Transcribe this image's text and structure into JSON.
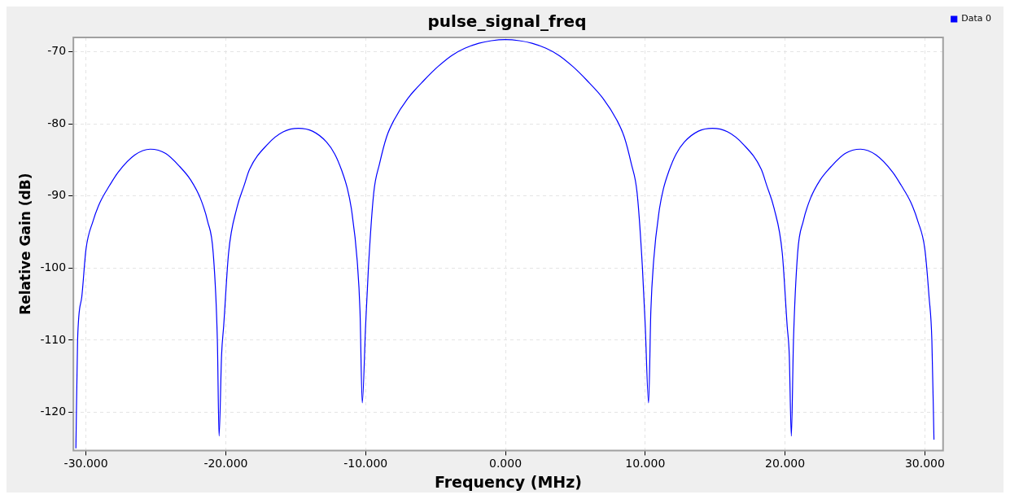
{
  "chart_data": {
    "type": "line",
    "title": "pulse_signal_freq",
    "xlabel": "Frequency (MHz)",
    "ylabel": "Relative Gain (dB)",
    "x": [
      -30.72,
      -30.6,
      -30.3,
      -30.0,
      -29.5,
      -29.0,
      -28.3,
      -27.7,
      -26.5,
      -25.4,
      -24.3,
      -23.3,
      -22.5,
      -21.8,
      -21.3,
      -20.9,
      -20.6,
      -20.48,
      -20.3,
      -20.15,
      -19.8,
      -19.2,
      -18.7,
      -18.3,
      -17.0,
      -15.9,
      -14.8,
      -13.8,
      -12.8,
      -12.2,
      -11.7,
      -11.3,
      -11.0,
      -10.6,
      -10.4,
      -10.24,
      -10.0,
      -9.8,
      -9.42,
      -9.0,
      -8.5,
      -7.95,
      -7.0,
      -5.8,
      -4.8,
      -3.84,
      -2.9,
      -1.9,
      -1.0,
      0,
      1.0,
      1.9,
      2.9,
      3.84,
      4.8,
      5.8,
      7.0,
      7.95,
      8.5,
      9.0,
      9.42,
      9.8,
      10.0,
      10.24,
      10.4,
      10.6,
      11.0,
      11.3,
      11.7,
      12.2,
      12.8,
      13.8,
      14.8,
      15.9,
      17.0,
      18.3,
      18.7,
      19.2,
      19.8,
      20.15,
      20.3,
      20.45,
      20.6,
      20.9,
      21.3,
      21.8,
      22.5,
      23.3,
      24.3,
      25.4,
      26.5,
      27.7,
      28.3,
      29.0,
      29.5,
      30.0,
      30.3,
      30.5,
      30.65
    ],
    "series": [
      {
        "name": "Data 0",
        "color": "#0000ff",
        "values": [
          -125,
          -110,
          -104,
          -97.4,
          -93.5,
          -90.9,
          -88.5,
          -86.7,
          -84.3,
          -83.5,
          -84.1,
          -85.9,
          -87.8,
          -90.4,
          -93.5,
          -97.9,
          -110.2,
          -123.3,
          -112,
          -108,
          -97.9,
          -91.6,
          -88.6,
          -86.3,
          -82.8,
          -81.1,
          -80.6,
          -81.0,
          -82.5,
          -84.2,
          -86.5,
          -89,
          -92,
          -99,
          -106,
          -118.7,
          -108,
          -100,
          -89.6,
          -85.5,
          -81.8,
          -79.4,
          -76.5,
          -73.9,
          -72.0,
          -70.5,
          -69.5,
          -68.8,
          -68.45,
          -68.3,
          -68.45,
          -68.8,
          -69.5,
          -70.5,
          -72.0,
          -73.9,
          -76.5,
          -79.4,
          -81.8,
          -85.5,
          -89.6,
          -100,
          -108,
          -118.7,
          -106,
          -99,
          -92,
          -89,
          -86.5,
          -84.2,
          -82.5,
          -81.0,
          -80.6,
          -81.1,
          -82.8,
          -86.3,
          -88.6,
          -91.6,
          -97.9,
          -108,
          -112,
          -123.3,
          -110.2,
          -97.9,
          -93.5,
          -90.4,
          -87.8,
          -85.9,
          -84.1,
          -83.5,
          -84.3,
          -86.7,
          -88.5,
          -90.9,
          -93.5,
          -97.4,
          -104,
          -110,
          -123.8
        ]
      }
    ],
    "xlim": [
      -30.9,
      31.3
    ],
    "ylim": [
      -125.3,
      -68
    ],
    "xticks": [
      {
        "value": -30,
        "label": "-30.000"
      },
      {
        "value": -20,
        "label": "-20.000"
      },
      {
        "value": -10,
        "label": "-10.000"
      },
      {
        "value": 0,
        "label": "0.000"
      },
      {
        "value": 10,
        "label": "10.000"
      },
      {
        "value": 20,
        "label": "20.000"
      },
      {
        "value": 30,
        "label": "30.000"
      }
    ],
    "yticks": [
      -120,
      -110,
      -100,
      -90,
      -80,
      -70
    ],
    "grid": true,
    "legend": "top right",
    "marker": "none",
    "line_style": "solid"
  }
}
